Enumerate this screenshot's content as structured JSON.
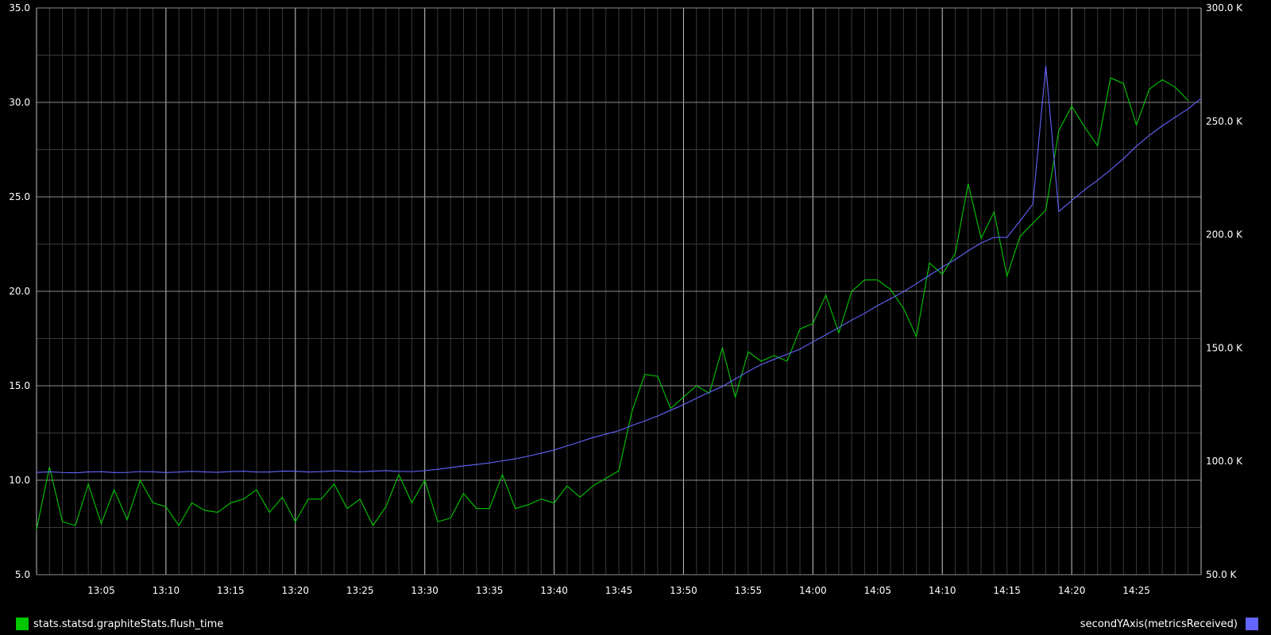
{
  "chart_data": {
    "type": "line",
    "x_range": [
      "13:00",
      "14:30"
    ],
    "x_ticks": [
      "13:05",
      "13:10",
      "13:15",
      "13:20",
      "13:25",
      "13:30",
      "13:35",
      "13:40",
      "13:45",
      "13:50",
      "13:55",
      "14:00",
      "14:05",
      "14:10",
      "14:15",
      "14:20",
      "14:25"
    ],
    "left_axis": {
      "range": [
        5.0,
        35.0
      ],
      "ticks": [
        "5.0",
        "10.0",
        "15.0",
        "20.0",
        "25.0",
        "30.0",
        "35.0"
      ]
    },
    "right_axis": {
      "range": [
        50000,
        300000
      ],
      "ticks": [
        "50.0 K",
        "100.0 K",
        "150.0 K",
        "200.0 K",
        "250.0 K",
        "300.0 K"
      ]
    },
    "grid": true,
    "series": [
      {
        "name": "stats.statsd.graphiteStats.flush_time",
        "axis": "left",
        "color": "#00c800",
        "x_start": "13:00",
        "interval_seconds": 60,
        "values": [
          7.4,
          10.7,
          7.8,
          7.6,
          9.8,
          7.7,
          9.5,
          7.9,
          10.0,
          8.8,
          8.6,
          7.6,
          8.8,
          8.4,
          8.3,
          8.8,
          9.0,
          9.5,
          8.3,
          9.1,
          7.8,
          9.0,
          9.0,
          9.8,
          8.5,
          9.0,
          7.6,
          8.6,
          10.3,
          8.8,
          10.0,
          7.8,
          8.0,
          9.3,
          8.5,
          8.5,
          10.3,
          8.5,
          8.7,
          9.0,
          8.8,
          9.7,
          9.1,
          9.7,
          10.1,
          10.5,
          13.6,
          15.6,
          15.5,
          13.8,
          14.4,
          15.0,
          14.6,
          17.0,
          14.4,
          16.8,
          16.3,
          16.6,
          16.3,
          18.0,
          18.3,
          19.8,
          17.8,
          20.0,
          20.6,
          20.6,
          20.1,
          19.1,
          17.6,
          21.5,
          20.9,
          22.0,
          25.7,
          22.8,
          24.2,
          20.8,
          22.9,
          23.6,
          24.3,
          28.5,
          29.8,
          28.7,
          27.7,
          31.3,
          31.0,
          28.8,
          30.7,
          31.2,
          30.8,
          30.1
        ]
      },
      {
        "name": "secondYAxis(metricsReceived)",
        "axis": "right",
        "color": "#6464ff",
        "x_start": "13:00",
        "interval_seconds": 60,
        "values": [
          null,
          null,
          null,
          null,
          null,
          null,
          null,
          null,
          null,
          null,
          null,
          null,
          null,
          null,
          null,
          null,
          null,
          null,
          null,
          null,
          null,
          null,
          null,
          null,
          null,
          null,
          null,
          null,
          null,
          null,
          null,
          null,
          null,
          null,
          null,
          null,
          null,
          null,
          null,
          null,
          null,
          null,
          null,
          null,
          null,
          null,
          null,
          null,
          null,
          null,
          null,
          null,
          null,
          null,
          null,
          null,
          null,
          null,
          null,
          null,
          null,
          null,
          null,
          null,
          null,
          null,
          null,
          null,
          null,
          null,
          null,
          null,
          null,
          null,
          null,
          null,
          null,
          null,
          null,
          null,
          null,
          null,
          null,
          null,
          null,
          null,
          null,
          null,
          null,
          null
        ]
      }
    ]
  },
  "legend": {
    "left_label": "stats.statsd.graphiteStats.flush_time",
    "right_label": "secondYAxis(metricsReceived)"
  }
}
